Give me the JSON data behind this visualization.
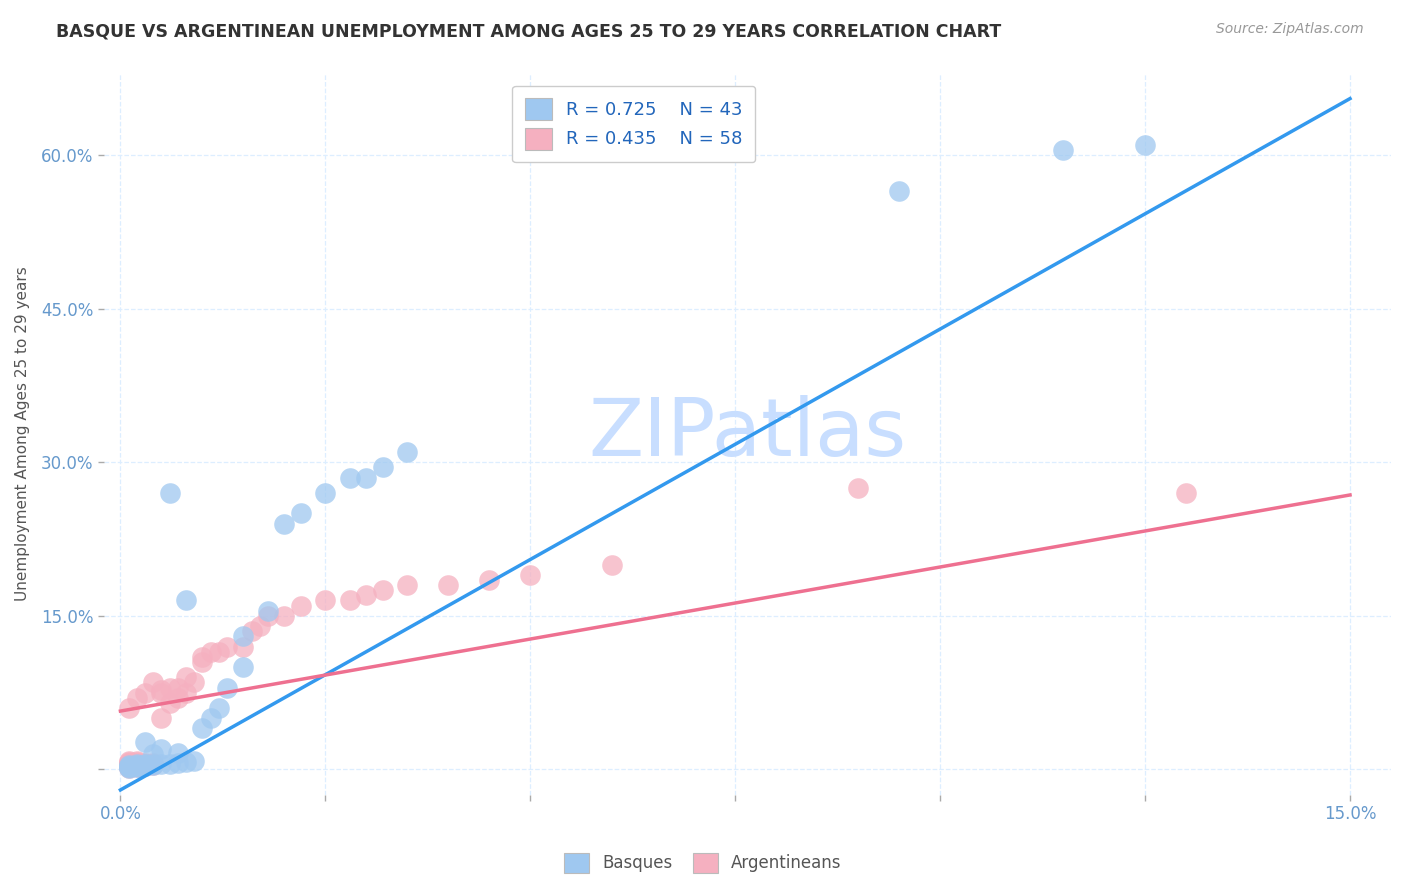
{
  "title": "BASQUE VS ARGENTINEAN UNEMPLOYMENT AMONG AGES 25 TO 29 YEARS CORRELATION CHART",
  "source_text": "Source: ZipAtlas.com",
  "ylabel": "Unemployment Among Ages 25 to 29 years",
  "xlim": [
    -0.002,
    0.155
  ],
  "ylim": [
    -0.025,
    0.68
  ],
  "x_ticks": [
    0.0,
    0.025,
    0.05,
    0.075,
    0.1,
    0.125,
    0.15
  ],
  "x_tick_labels": [
    "0.0%",
    "",
    "",
    "",
    "",
    "",
    "15.0%"
  ],
  "y_ticks": [
    0.0,
    0.15,
    0.3,
    0.45,
    0.6
  ],
  "y_tick_labels": [
    "",
    "15.0%",
    "30.0%",
    "45.0%",
    "60.0%"
  ],
  "blue_color": "#9FC8F0",
  "pink_color": "#F5B0C0",
  "blue_line_color": "#3399EE",
  "pink_line_color": "#EE7090",
  "tick_color": "#6699CC",
  "grid_color": "#DDEEFF",
  "title_color": "#333333",
  "source_color": "#999999",
  "watermark_color": "#C8DEFF",
  "legend_R1": "R = 0.725",
  "legend_N1": "N = 43",
  "legend_R2": "R = 0.435",
  "legend_N2": "N = 58",
  "blue_trend": [
    0.0,
    -0.02,
    0.15,
    0.655
  ],
  "pink_trend": [
    0.0,
    0.057,
    0.15,
    0.268
  ],
  "blue_points_x": [
    0.001,
    0.001,
    0.001,
    0.001,
    0.001,
    0.002,
    0.002,
    0.002,
    0.002,
    0.002,
    0.003,
    0.003,
    0.003,
    0.003,
    0.004,
    0.004,
    0.004,
    0.005,
    0.005,
    0.006,
    0.006,
    0.007,
    0.007,
    0.008,
    0.008,
    0.009,
    0.01,
    0.011,
    0.012,
    0.013,
    0.015,
    0.015,
    0.018,
    0.02,
    0.022,
    0.025,
    0.028,
    0.03,
    0.032,
    0.035,
    0.095,
    0.115,
    0.125
  ],
  "blue_points_y": [
    0.001,
    0.002,
    0.002,
    0.003,
    0.004,
    0.002,
    0.003,
    0.003,
    0.004,
    0.005,
    0.003,
    0.004,
    0.005,
    0.027,
    0.004,
    0.005,
    0.015,
    0.005,
    0.02,
    0.005,
    0.27,
    0.006,
    0.016,
    0.007,
    0.165,
    0.008,
    0.04,
    0.05,
    0.06,
    0.08,
    0.1,
    0.13,
    0.155,
    0.24,
    0.25,
    0.27,
    0.285,
    0.285,
    0.295,
    0.31,
    0.565,
    0.605,
    0.61
  ],
  "pink_points_x": [
    0.001,
    0.001,
    0.001,
    0.001,
    0.001,
    0.001,
    0.001,
    0.001,
    0.001,
    0.002,
    0.002,
    0.002,
    0.002,
    0.002,
    0.002,
    0.002,
    0.002,
    0.003,
    0.003,
    0.003,
    0.003,
    0.003,
    0.004,
    0.004,
    0.004,
    0.004,
    0.005,
    0.005,
    0.005,
    0.006,
    0.006,
    0.007,
    0.007,
    0.008,
    0.008,
    0.009,
    0.01,
    0.01,
    0.011,
    0.012,
    0.013,
    0.015,
    0.016,
    0.017,
    0.018,
    0.02,
    0.022,
    0.025,
    0.028,
    0.03,
    0.032,
    0.035,
    0.04,
    0.045,
    0.05,
    0.06,
    0.09,
    0.13
  ],
  "pink_points_y": [
    0.001,
    0.002,
    0.003,
    0.004,
    0.005,
    0.006,
    0.007,
    0.008,
    0.06,
    0.002,
    0.003,
    0.004,
    0.005,
    0.006,
    0.007,
    0.008,
    0.07,
    0.003,
    0.004,
    0.005,
    0.006,
    0.075,
    0.004,
    0.005,
    0.006,
    0.085,
    0.05,
    0.075,
    0.078,
    0.065,
    0.08,
    0.07,
    0.08,
    0.075,
    0.09,
    0.085,
    0.105,
    0.11,
    0.115,
    0.115,
    0.12,
    0.12,
    0.135,
    0.14,
    0.15,
    0.15,
    0.16,
    0.165,
    0.165,
    0.17,
    0.175,
    0.18,
    0.18,
    0.185,
    0.19,
    0.2,
    0.275,
    0.27
  ]
}
